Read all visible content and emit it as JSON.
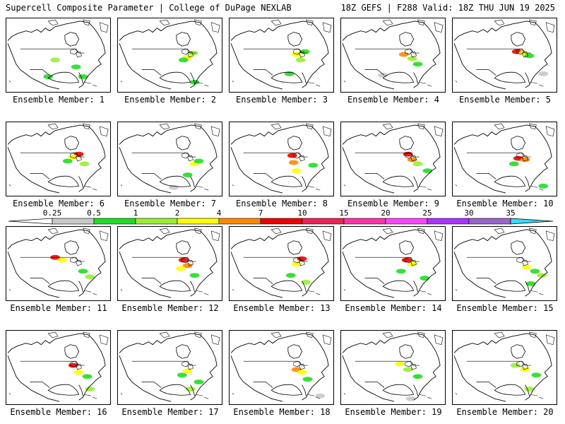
{
  "header": {
    "left_title": "Supercell Composite Parameter | College of DuPage NEXLAB",
    "right_title": "18Z GEFS | F288 Valid: 18Z THU JUN 19 2025"
  },
  "panels": [
    {
      "label": "Ensemble Member: 1"
    },
    {
      "label": "Ensemble Member: 2"
    },
    {
      "label": "Ensemble Member: 3"
    },
    {
      "label": "Ensemble Member: 4"
    },
    {
      "label": "Ensemble Member: 5"
    },
    {
      "label": "Ensemble Member: 6"
    },
    {
      "label": "Ensemble Member: 7"
    },
    {
      "label": "Ensemble Member: 8"
    },
    {
      "label": "Ensemble Member: 9"
    },
    {
      "label": "Ensemble Member: 10"
    },
    {
      "label": "Ensemble Member: 11"
    },
    {
      "label": "Ensemble Member: 12"
    },
    {
      "label": "Ensemble Member: 13"
    },
    {
      "label": "Ensemble Member: 14"
    },
    {
      "label": "Ensemble Member: 15"
    },
    {
      "label": "Ensemble Member: 16"
    },
    {
      "label": "Ensemble Member: 17"
    },
    {
      "label": "Ensemble Member: 18"
    },
    {
      "label": "Ensemble Member: 19"
    },
    {
      "label": "Ensemble Member: 20"
    }
  ],
  "colorbar": {
    "ticks": [
      "0.25",
      "0.5",
      "1",
      "2",
      "4",
      "7",
      "10",
      "15",
      "20",
      "25",
      "30",
      "35"
    ],
    "colors": [
      "#c8c8c8",
      "#22dd22",
      "#99ee33",
      "#ffff00",
      "#ff8800",
      "#ee0000",
      "#ee2255",
      "#ff33aa",
      "#ff44ff",
      "#aa33ff",
      "#9966cc",
      "#33ddff"
    ],
    "below_min_color": "#ffffff",
    "above_max_color": "#33ddff"
  },
  "highlighted_panel": "Ensemble Member: 20"
}
